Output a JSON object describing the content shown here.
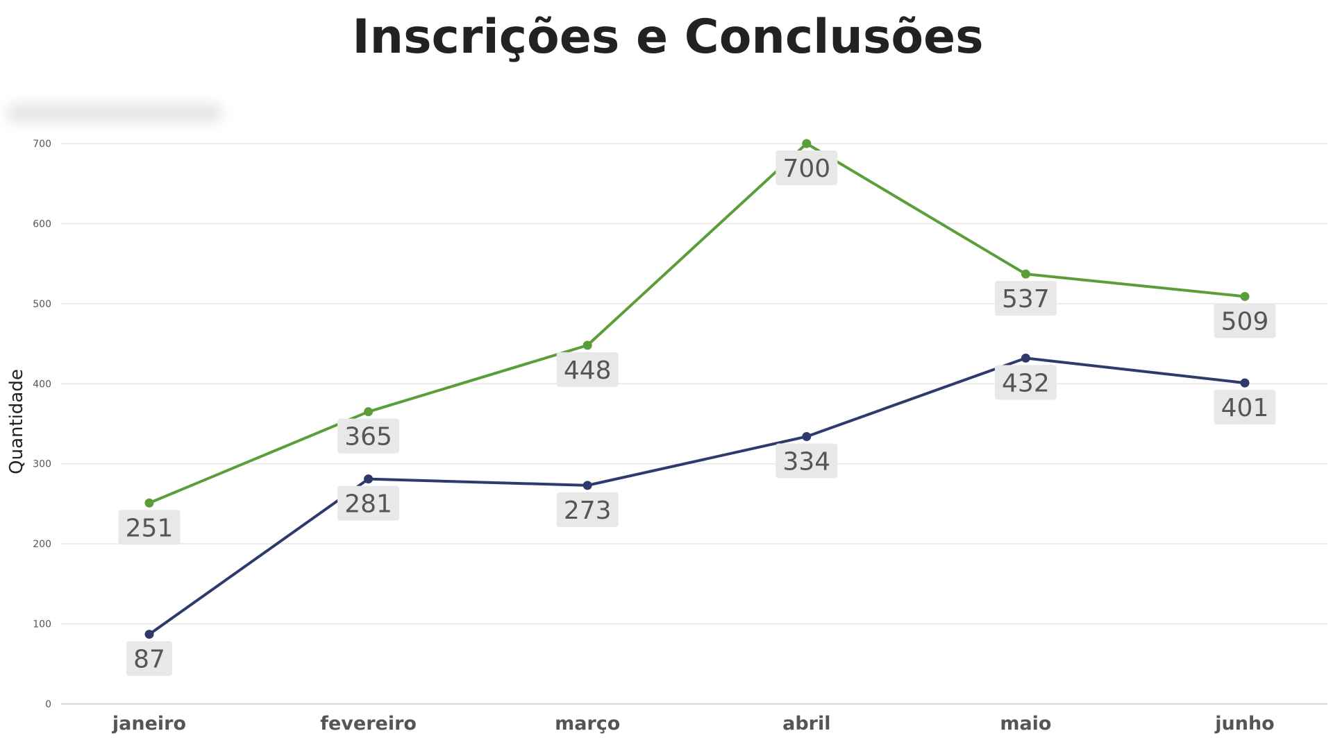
{
  "chart_data": {
    "type": "line",
    "title": "Inscrições e Conclusões",
    "subtitle": "",
    "xlabel": "",
    "ylabel": "Quantidade",
    "categories": [
      "janeiro",
      "fevereiro",
      "março",
      "abril",
      "maio",
      "junho"
    ],
    "ylim": [
      0,
      700
    ],
    "yticks": [
      0,
      100,
      200,
      300,
      400,
      500,
      600,
      700
    ],
    "grid": true,
    "legend": "none",
    "series": [
      {
        "values": [
          251,
          365,
          448,
          700,
          537,
          509
        ],
        "color": "#5a9e3a"
      },
      {
        "values": [
          87,
          281,
          273,
          334,
          432,
          401
        ],
        "color": "#2e3a6b"
      }
    ]
  },
  "colors": {
    "title": "#222222",
    "grid": "#e6e6e6",
    "label_box": "#e8e8e8",
    "label_text": "#555555"
  }
}
